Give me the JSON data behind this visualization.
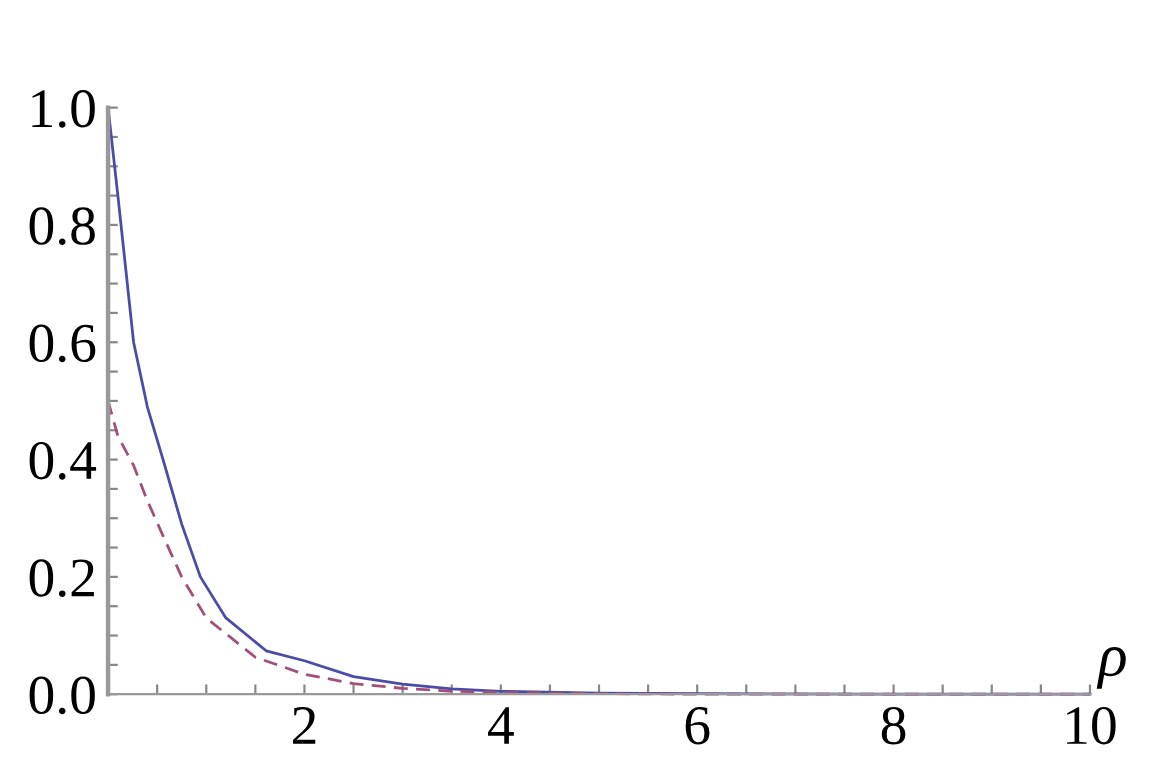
{
  "chart_data": {
    "type": "line",
    "xlabel": "ρ",
    "series": [
      {
        "color": "#4b4ba8",
        "line_style": "solid",
        "x": [
          0,
          0.1,
          0.26,
          0.4,
          0.56,
          0.75,
          0.94,
          1.2,
          1.61,
          2,
          2.5,
          3,
          3.5,
          4,
          5,
          6,
          8,
          10
        ],
        "values": [
          1.0,
          0.85,
          0.6,
          0.49,
          0.4,
          0.29,
          0.2,
          0.13,
          0.074,
          0.057,
          0.03,
          0.017,
          0.009,
          0.005,
          0.002,
          0.001,
          0.0,
          0.0
        ]
      },
      {
        "color": "#a0507a",
        "line_style": "dashed",
        "x": [
          0,
          0.1,
          0.26,
          0.4,
          0.56,
          0.75,
          1.0,
          1.5,
          2,
          2.5,
          3,
          3.5,
          4,
          5,
          6,
          8,
          10
        ],
        "values": [
          0.5,
          0.44,
          0.39,
          0.33,
          0.27,
          0.2,
          0.13,
          0.063,
          0.034,
          0.018,
          0.01,
          0.005,
          0.003,
          0.001,
          0.0,
          0.0,
          0.0
        ]
      }
    ],
    "xlim": [
      0,
      10
    ],
    "ylim": [
      0,
      1.0
    ],
    "xticks": [
      {
        "value": 0.5,
        "label": null
      },
      {
        "value": 1,
        "label": null
      },
      {
        "value": 1.5,
        "label": null
      },
      2,
      {
        "value": 2.5,
        "label": null
      },
      {
        "value": 3,
        "label": null
      },
      {
        "value": 3.5,
        "label": null
      },
      4,
      {
        "value": 4.5,
        "label": null
      },
      {
        "value": 5,
        "label": null
      },
      {
        "value": 5.5,
        "label": null
      },
      6,
      {
        "value": 6.5,
        "label": null
      },
      {
        "value": 7,
        "label": null
      },
      {
        "value": 7.5,
        "label": null
      },
      8,
      {
        "value": 8.5,
        "label": null
      },
      {
        "value": 9,
        "label": null
      },
      {
        "value": 9.5,
        "label": null
      },
      10
    ],
    "yticks": [
      {
        "value": 0,
        "label": "0.0"
      },
      {
        "value": 0.05,
        "label": null
      },
      {
        "value": 0.1,
        "label": null
      },
      {
        "value": 0.15,
        "label": null
      },
      {
        "value": 0.2,
        "label": "0.2"
      },
      {
        "value": 0.25,
        "label": null
      },
      {
        "value": 0.3,
        "label": null
      },
      {
        "value": 0.35,
        "label": null
      },
      {
        "value": 0.4,
        "label": "0.4"
      },
      {
        "value": 0.45,
        "label": null
      },
      {
        "value": 0.5,
        "label": null
      },
      {
        "value": 0.55,
        "label": null
      },
      {
        "value": 0.6,
        "label": "0.6"
      },
      {
        "value": 0.65,
        "label": null
      },
      {
        "value": 0.7,
        "label": null
      },
      {
        "value": 0.75,
        "label": null
      },
      {
        "value": 0.8,
        "label": "0.8"
      },
      {
        "value": 0.85,
        "label": null
      },
      {
        "value": 0.9,
        "label": null
      },
      {
        "value": 0.95,
        "label": null
      },
      {
        "value": 1.0,
        "label": "1.0"
      }
    ],
    "grid": false,
    "legend": false
  }
}
